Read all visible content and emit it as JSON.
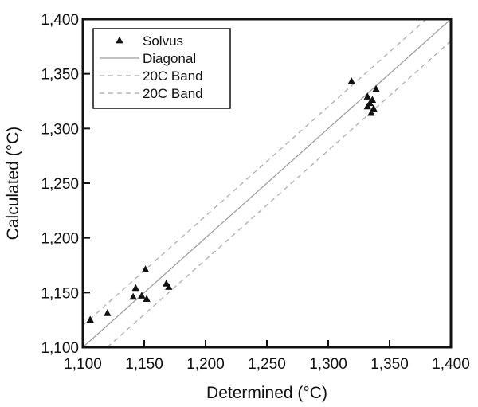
{
  "chart_data": {
    "type": "scatter",
    "xlabel": "Determined (°C)",
    "ylabel": "Calculated (°C)",
    "xlim": [
      1100,
      1400
    ],
    "ylim": [
      1100,
      1400
    ],
    "xticks": [
      "1,100",
      "1,150",
      "1,200",
      "1,250",
      "1,300",
      "1,350",
      "1,400"
    ],
    "yticks": [
      "1,100",
      "1,150",
      "1,200",
      "1,250",
      "1,300",
      "1,350",
      "1,400"
    ],
    "grid": false,
    "legend_position": "top-left",
    "series": [
      {
        "name": "Solvus",
        "kind": "points",
        "marker": "triangle",
        "color": "#111111",
        "points": [
          [
            1106,
            1125
          ],
          [
            1120,
            1131
          ],
          [
            1141,
            1146
          ],
          [
            1143,
            1154
          ],
          [
            1148,
            1147
          ],
          [
            1151,
            1171
          ],
          [
            1152,
            1144
          ],
          [
            1168,
            1158
          ],
          [
            1170,
            1155
          ],
          [
            1319,
            1343
          ],
          [
            1332,
            1329
          ],
          [
            1332,
            1320
          ],
          [
            1334,
            1323
          ],
          [
            1335,
            1314
          ],
          [
            1336,
            1326
          ],
          [
            1337,
            1318
          ],
          [
            1339,
            1336
          ]
        ]
      },
      {
        "name": "Diagonal",
        "kind": "line",
        "color": "#9a9a9a",
        "dash": "solid",
        "points": [
          [
            1100,
            1100
          ],
          [
            1400,
            1400
          ]
        ]
      },
      {
        "name": "20C Band",
        "kind": "line",
        "color": "#a8a8a8",
        "dash": "dashed",
        "points": [
          [
            1100,
            1120
          ],
          [
            1380,
            1400
          ]
        ]
      },
      {
        "name": "20C Band",
        "kind": "line",
        "color": "#a8a8a8",
        "dash": "dashed",
        "points": [
          [
            1120,
            1100
          ],
          [
            1400,
            1380
          ]
        ]
      }
    ]
  }
}
